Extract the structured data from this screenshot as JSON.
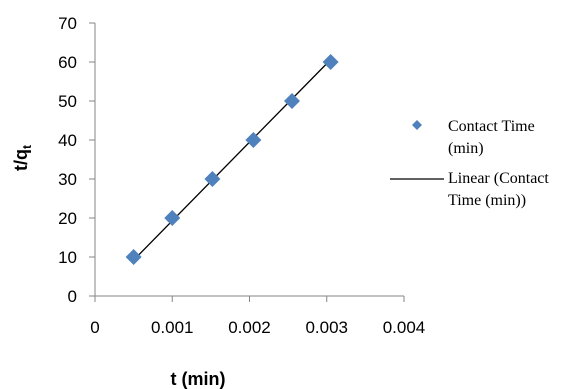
{
  "chart_data": {
    "type": "scatter",
    "xlabel": "t (min)",
    "ylabel": "t/qt",
    "ylabel_main": "t/q",
    "ylabel_sub": "t",
    "xlim": [
      0,
      0.004
    ],
    "ylim": [
      0,
      70
    ],
    "x_ticks": [
      "0",
      "0.001",
      "0.002",
      "0.003",
      "0.004"
    ],
    "y_ticks": [
      "0",
      "10",
      "20",
      "30",
      "40",
      "50",
      "60",
      "70"
    ],
    "x_tick_values": [
      0,
      0.001,
      0.002,
      0.003,
      0.004
    ],
    "y_tick_values": [
      0,
      10,
      20,
      30,
      40,
      50,
      60,
      70
    ],
    "grid": false,
    "legend_position": "right",
    "series": [
      {
        "name": "Contact Time (min)",
        "kind": "points",
        "marker": "diamond",
        "color": "#4f81bd",
        "x": [
          0.0005,
          0.001,
          0.00152,
          0.00205,
          0.00255,
          0.00305
        ],
        "y": [
          10,
          20,
          30,
          40,
          50,
          60
        ]
      },
      {
        "name": "Linear (Contact Time (min))",
        "kind": "trendline",
        "color": "#000000",
        "x": [
          0.00049,
          0.00306
        ],
        "y": [
          9.0,
          60.8
        ]
      }
    ],
    "legend": [
      {
        "lines": [
          "Contact Time",
          "(min)"
        ]
      },
      {
        "lines": [
          "Linear (Contact",
          "Time (min))"
        ]
      }
    ]
  }
}
